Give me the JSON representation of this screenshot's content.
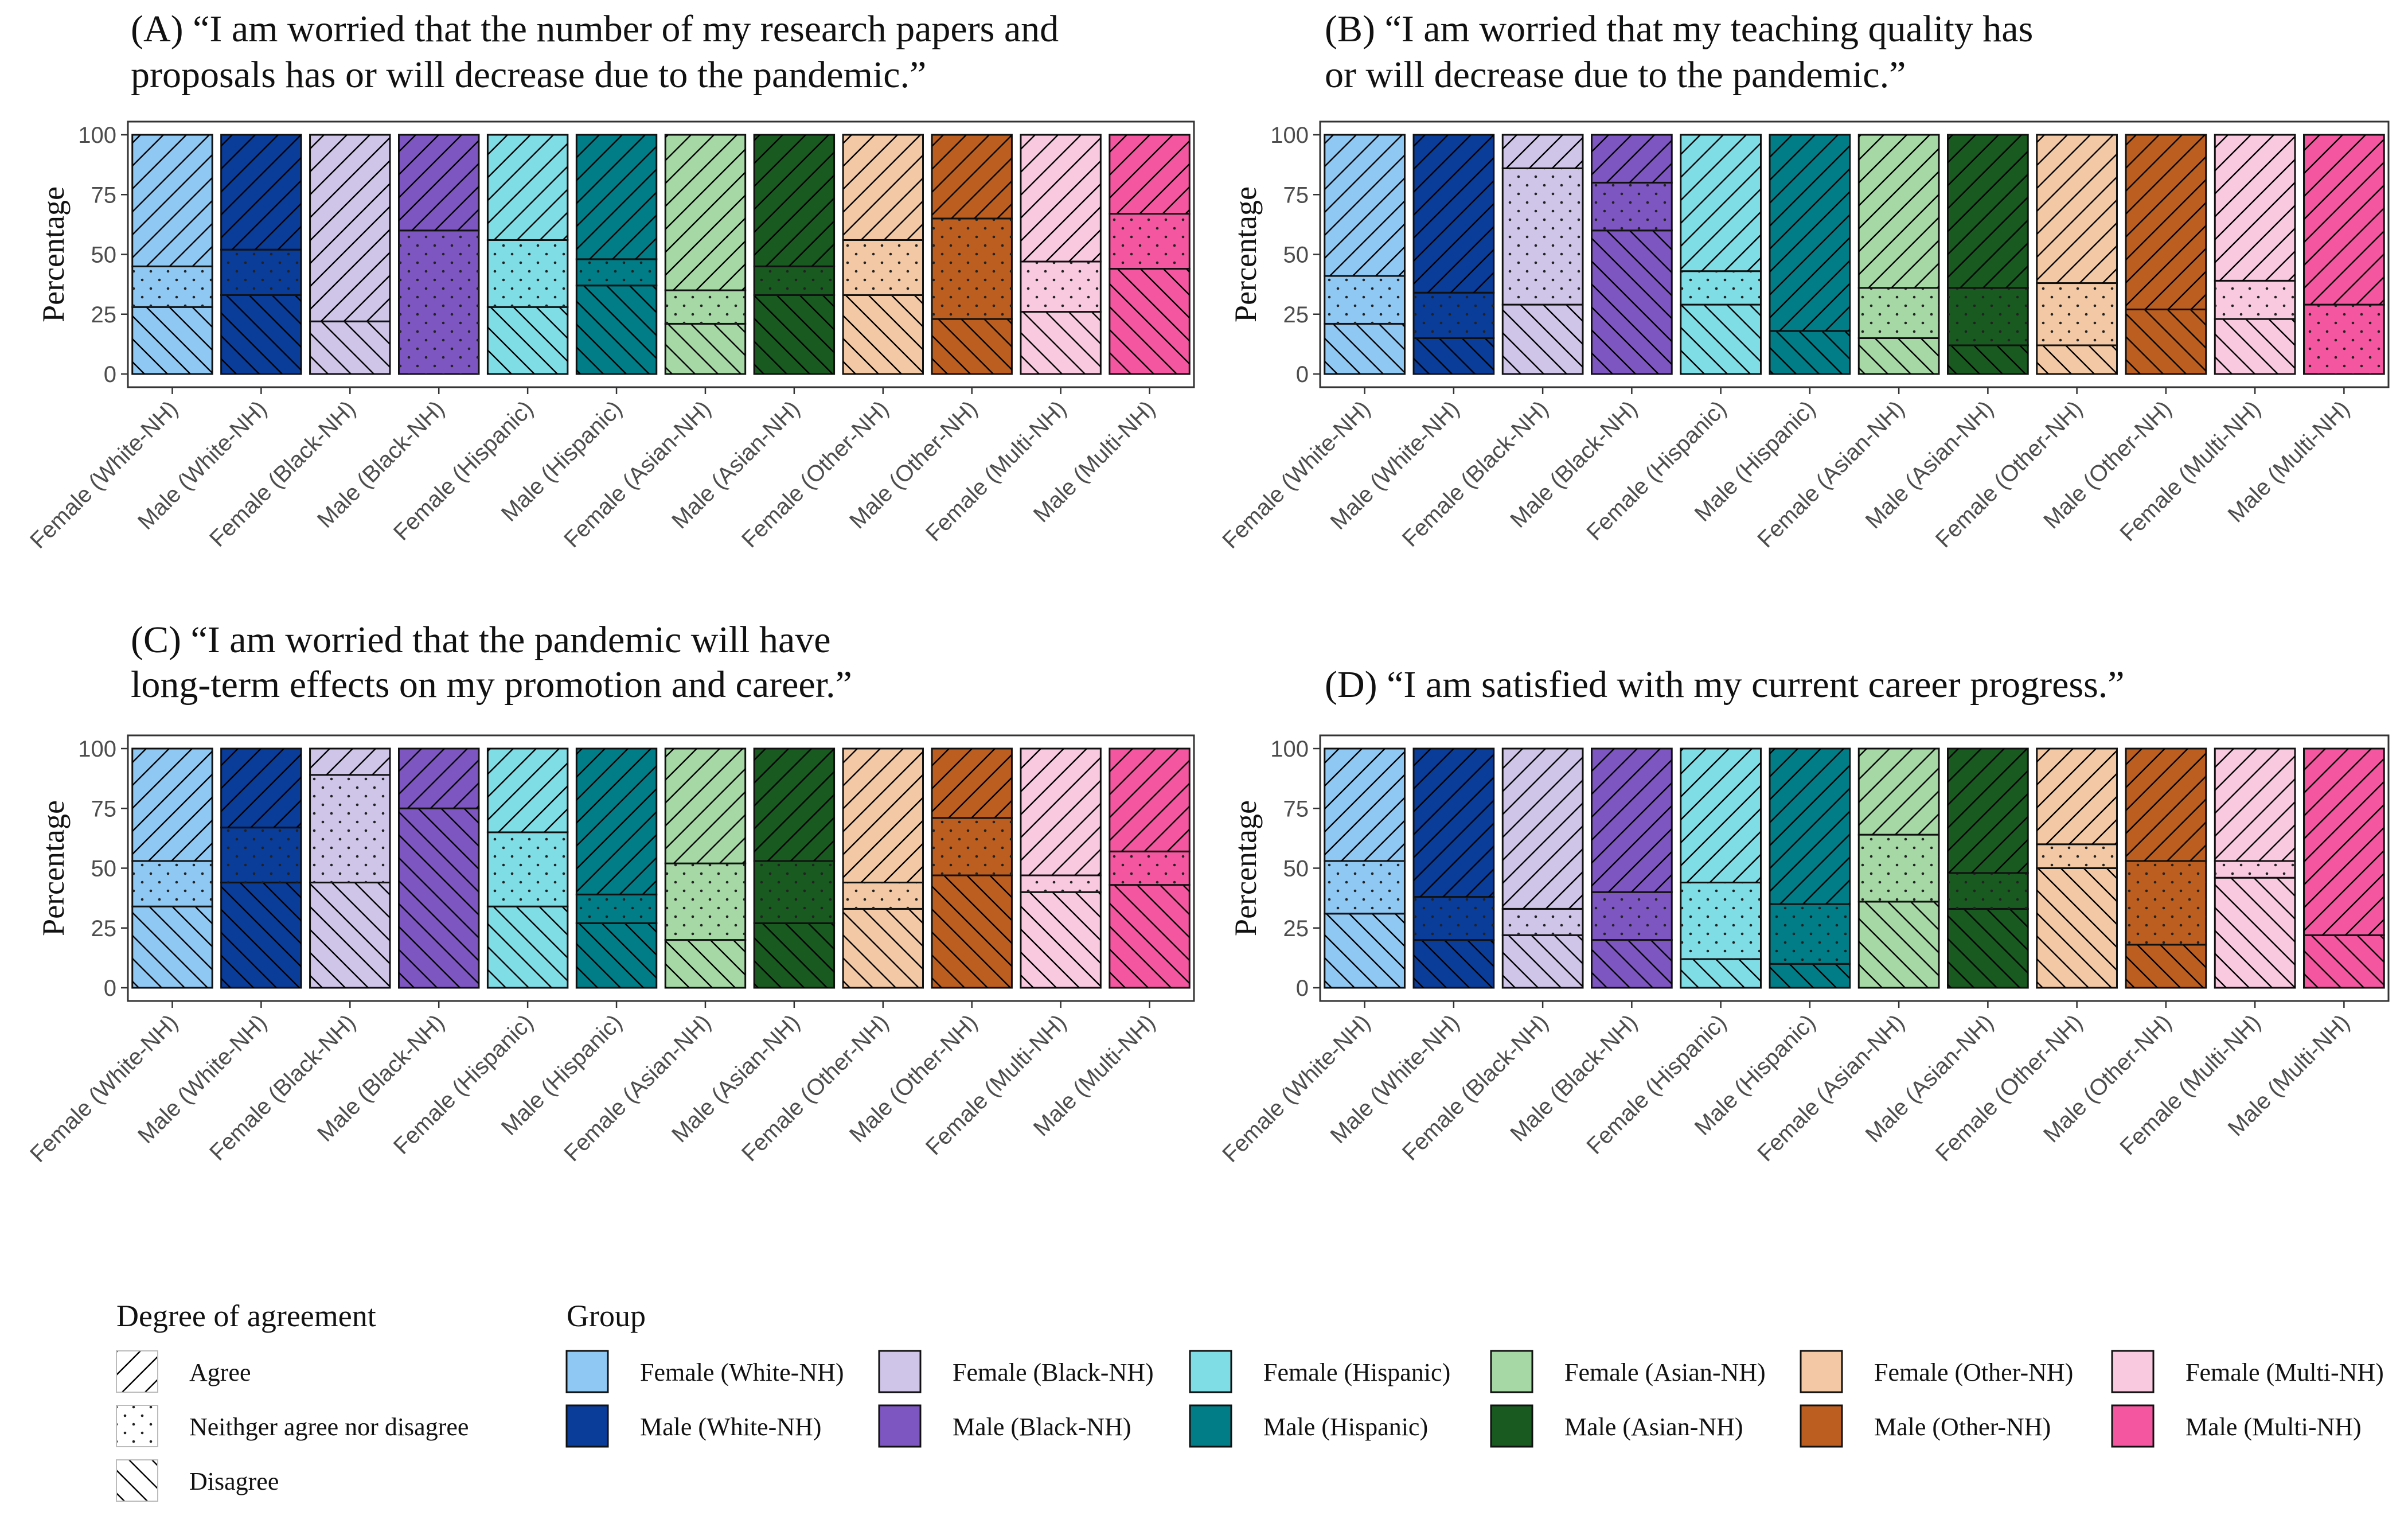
{
  "figure": {
    "legend": {
      "agreement_title": "Degree of agreement",
      "group_title": "Group",
      "agreement_levels": [
        "Agree",
        "Neithger agree nor disagree",
        "Disagree"
      ],
      "groups": [
        {
          "name": "Female (White-NH)",
          "color": "#90C8F4"
        },
        {
          "name": "Male (White-NH)",
          "color": "#0A3C9A"
        },
        {
          "name": "Female (Black-NH)",
          "color": "#CEC5E8"
        },
        {
          "name": "Male (Black-NH)",
          "color": "#7E56C2"
        },
        {
          "name": "Female (Hispanic)",
          "color": "#7FDDE6"
        },
        {
          "name": "Male (Hispanic)",
          "color": "#007D86"
        },
        {
          "name": "Female (Asian-NH)",
          "color": "#A5D8A5"
        },
        {
          "name": "Male (Asian-NH)",
          "color": "#185A20"
        },
        {
          "name": "Female (Other-NH)",
          "color": "#F3C9A5"
        },
        {
          "name": "Male (Other-NH)",
          "color": "#BC5E20"
        },
        {
          "name": "Female (Multi-NH)",
          "color": "#F8C9DF"
        },
        {
          "name": "Male (Multi-NH)",
          "color": "#F4579F"
        }
      ]
    }
  },
  "chart_data": [
    {
      "type": "bar",
      "stacked": true,
      "title_lines": [
        "(A) “I am worried that the number of my research papers and",
        "proposals has or will decrease due to the pandemic.”"
      ],
      "ylabel": "Percentage",
      "ylim": [
        0,
        100
      ],
      "yticks": [
        0,
        25,
        50,
        75,
        100
      ],
      "categories": [
        "Female (White-NH)",
        "Male (White-NH)",
        "Female (Black-NH)",
        "Male (Black-NH)",
        "Female (Hispanic)",
        "Male (Hispanic)",
        "Female (Asian-NH)",
        "Male (Asian-NH)",
        "Female (Other-NH)",
        "Male (Other-NH)",
        "Female (Multi-NH)",
        "Male (Multi-NH)"
      ],
      "series": [
        {
          "name": "Disagree",
          "values": [
            28,
            33,
            22,
            0,
            28,
            37,
            21,
            33,
            33,
            23,
            26,
            44
          ]
        },
        {
          "name": "Neithger agree nor disagree",
          "values": [
            17,
            19,
            0,
            60,
            28,
            11,
            14,
            12,
            23,
            42,
            21,
            23
          ]
        },
        {
          "name": "Agree",
          "values": [
            55,
            48,
            78,
            40,
            44,
            52,
            65,
            55,
            44,
            35,
            53,
            33
          ]
        }
      ]
    },
    {
      "type": "bar",
      "stacked": true,
      "title_lines": [
        "(B) “I am worried that my teaching quality has",
        " or will decrease due to the pandemic.”"
      ],
      "ylabel": "Percentage",
      "ylim": [
        0,
        100
      ],
      "yticks": [
        0,
        25,
        50,
        75,
        100
      ],
      "categories": [
        "Female (White-NH)",
        "Male (White-NH)",
        "Female (Black-NH)",
        "Male (Black-NH)",
        "Female (Hispanic)",
        "Male (Hispanic)",
        "Female (Asian-NH)",
        "Male (Asian-NH)",
        "Female (Other-NH)",
        "Male (Other-NH)",
        "Female (Multi-NH)",
        "Male (Multi-NH)"
      ],
      "series": [
        {
          "name": "Disagree",
          "values": [
            21,
            15,
            29,
            60,
            29,
            18,
            15,
            12,
            12,
            27,
            23,
            0
          ]
        },
        {
          "name": "Neithger agree nor disagree",
          "values": [
            20,
            19,
            57,
            20,
            14,
            0,
            21,
            24,
            26,
            0,
            16,
            29
          ]
        },
        {
          "name": "Agree",
          "values": [
            59,
            66,
            14,
            20,
            57,
            82,
            64,
            64,
            62,
            73,
            61,
            71
          ]
        }
      ]
    },
    {
      "type": "bar",
      "stacked": true,
      "title_lines": [
        "(C) “I am worried that the pandemic will have",
        "long-term effects on my promotion and career.”"
      ],
      "ylabel": "Percentage",
      "ylim": [
        0,
        100
      ],
      "yticks": [
        0,
        25,
        50,
        75,
        100
      ],
      "categories": [
        "Female (White-NH)",
        "Male (White-NH)",
        "Female (Black-NH)",
        "Male (Black-NH)",
        "Female (Hispanic)",
        "Male (Hispanic)",
        "Female (Asian-NH)",
        "Male (Asian-NH)",
        "Female (Other-NH)",
        "Male (Other-NH)",
        "Female (Multi-NH)",
        "Male (Multi-NH)"
      ],
      "series": [
        {
          "name": "Disagree",
          "values": [
            34,
            44,
            44,
            75,
            34,
            27,
            20,
            27,
            33,
            47,
            40,
            43
          ]
        },
        {
          "name": "Neithger agree nor disagree",
          "values": [
            19,
            23,
            45,
            0,
            31,
            12,
            32,
            26,
            11,
            24,
            7,
            14
          ]
        },
        {
          "name": "Agree",
          "values": [
            47,
            33,
            11,
            25,
            35,
            61,
            48,
            47,
            56,
            29,
            53,
            43
          ]
        }
      ]
    },
    {
      "type": "bar",
      "stacked": true,
      "title_lines": [
        "",
        "(D) “I am satisfied with my current career progress.”"
      ],
      "ylabel": "Percentage",
      "ylim": [
        0,
        100
      ],
      "yticks": [
        0,
        25,
        50,
        75,
        100
      ],
      "categories": [
        "Female (White-NH)",
        "Male (White-NH)",
        "Female (Black-NH)",
        "Male (Black-NH)",
        "Female (Hispanic)",
        "Male (Hispanic)",
        "Female (Asian-NH)",
        "Male (Asian-NH)",
        "Female (Other-NH)",
        "Male (Other-NH)",
        "Female (Multi-NH)",
        "Male (Multi-NH)"
      ],
      "series": [
        {
          "name": "Disagree",
          "values": [
            31,
            20,
            22,
            20,
            12,
            10,
            36,
            33,
            50,
            18,
            46,
            22
          ]
        },
        {
          "name": "Neithger agree nor disagree",
          "values": [
            22,
            18,
            11,
            20,
            32,
            25,
            28,
            15,
            10,
            35,
            7,
            0
          ]
        },
        {
          "name": "Agree",
          "values": [
            47,
            62,
            67,
            60,
            56,
            65,
            36,
            52,
            40,
            47,
            47,
            78
          ]
        }
      ]
    }
  ]
}
